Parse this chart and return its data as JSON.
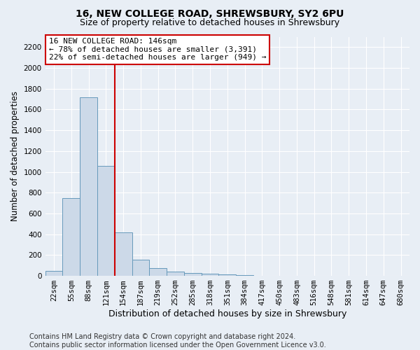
{
  "title": "16, NEW COLLEGE ROAD, SHREWSBURY, SY2 6PU",
  "subtitle": "Size of property relative to detached houses in Shrewsbury",
  "xlabel": "Distribution of detached houses by size in Shrewsbury",
  "ylabel": "Number of detached properties",
  "bar_labels": [
    "22sqm",
    "55sqm",
    "88sqm",
    "121sqm",
    "154sqm",
    "187sqm",
    "219sqm",
    "252sqm",
    "285sqm",
    "318sqm",
    "351sqm",
    "384sqm",
    "417sqm",
    "450sqm",
    "483sqm",
    "516sqm",
    "548sqm",
    "581sqm",
    "614sqm",
    "647sqm",
    "680sqm"
  ],
  "bar_values": [
    50,
    750,
    1720,
    1060,
    420,
    155,
    75,
    40,
    30,
    22,
    15,
    5,
    3,
    2,
    1,
    0,
    0,
    0,
    0,
    0,
    0
  ],
  "bar_color": "#ccd9e8",
  "bar_edge_color": "#6699bb",
  "vline_color": "#cc0000",
  "annotation_text": "16 NEW COLLEGE ROAD: 146sqm\n← 78% of detached houses are smaller (3,391)\n22% of semi-detached houses are larger (949) →",
  "annotation_box_color": "#ffffff",
  "annotation_box_edge": "#cc0000",
  "ylim": [
    0,
    2300
  ],
  "yticks": [
    0,
    200,
    400,
    600,
    800,
    1000,
    1200,
    1400,
    1600,
    1800,
    2000,
    2200
  ],
  "footer": "Contains HM Land Registry data © Crown copyright and database right 2024.\nContains public sector information licensed under the Open Government Licence v3.0.",
  "bg_color": "#e8eef5",
  "plot_bg_color": "#e8eef5",
  "grid_color": "#ffffff",
  "title_fontsize": 10,
  "subtitle_fontsize": 9,
  "xlabel_fontsize": 9,
  "ylabel_fontsize": 8.5,
  "tick_fontsize": 7.5,
  "footer_fontsize": 7
}
